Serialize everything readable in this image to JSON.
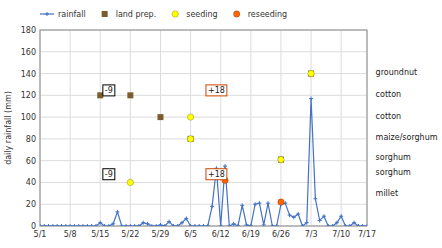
{
  "chart_data": {
    "type": "line",
    "ylabel": "daily rainfall (mm)",
    "xlim": [
      0,
      76
    ],
    "ylim": [
      0,
      180
    ],
    "yticks": [
      0,
      20,
      40,
      60,
      80,
      100,
      120,
      140,
      160,
      180
    ],
    "xticks": [
      {
        "value": 0,
        "label": "5/1"
      },
      {
        "value": 7,
        "label": "5/8"
      },
      {
        "value": 14,
        "label": "5/15"
      },
      {
        "value": 21,
        "label": "5/22"
      },
      {
        "value": 28,
        "label": "5/29"
      },
      {
        "value": 35,
        "label": "6/5"
      },
      {
        "value": 42,
        "label": "6/12"
      },
      {
        "value": 49,
        "label": "6/19"
      },
      {
        "value": 56,
        "label": "6/26"
      },
      {
        "value": 63,
        "label": "7/3"
      },
      {
        "value": 70,
        "label": "7/10"
      },
      {
        "value": 76,
        "label": "7/17"
      }
    ],
    "grid": true,
    "legend": "top",
    "series": [
      {
        "name": "rainfall",
        "type": "line",
        "color": "#4472c4",
        "marker": "plus",
        "x": [
          0,
          1,
          2,
          3,
          4,
          5,
          6,
          7,
          8,
          9,
          10,
          11,
          12,
          13,
          14,
          15,
          16,
          17,
          18,
          19,
          20,
          21,
          22,
          23,
          24,
          25,
          26,
          27,
          28,
          29,
          30,
          31,
          32,
          33,
          34,
          35,
          36,
          37,
          38,
          39,
          40,
          41,
          42,
          43,
          44,
          45,
          46,
          47,
          48,
          49,
          50,
          51,
          52,
          53,
          54,
          55,
          56,
          57,
          58,
          59,
          60,
          61,
          62,
          63,
          64,
          65,
          66,
          67,
          68,
          69,
          70,
          71,
          72,
          73,
          74,
          75,
          76
        ],
        "values": [
          0,
          0,
          0,
          0,
          0,
          0,
          0,
          0,
          0,
          0,
          0,
          0,
          0,
          0,
          3,
          0,
          0,
          2,
          13,
          0,
          0,
          0,
          0,
          0,
          3,
          2,
          0,
          0,
          1,
          0,
          4,
          0,
          0,
          3,
          7,
          0,
          0,
          0,
          0,
          0,
          18,
          53,
          0,
          55,
          0,
          2,
          0,
          19,
          1,
          0,
          20,
          21,
          1,
          21,
          0,
          0,
          20,
          21,
          10,
          8,
          11,
          0,
          3,
          117,
          25,
          5,
          9,
          0,
          0,
          3,
          9,
          0,
          0,
          3,
          0,
          0,
          0
        ]
      },
      {
        "name": "land prep.",
        "type": "scatter",
        "color": "#7b5c2e",
        "marker": "square",
        "x": [
          14,
          21,
          28,
          35,
          56,
          63
        ],
        "values": [
          120,
          120,
          100,
          80,
          61,
          140
        ]
      },
      {
        "name": "seeding",
        "type": "scatter",
        "color": "#ffff00",
        "marker": "circle",
        "x": [
          21,
          35,
          35,
          56,
          63
        ],
        "values": [
          40,
          100,
          80,
          61,
          140
        ]
      },
      {
        "name": "reseeding",
        "type": "scatter",
        "color": "#ff6600",
        "marker": "circle",
        "x": [
          43,
          56
        ],
        "values": [
          42,
          22
        ]
      }
    ],
    "annotations": [
      {
        "x": 16,
        "y": 48,
        "text": "-9",
        "color": "black"
      },
      {
        "x": 41,
        "y": 48,
        "text": "+18",
        "color": "#cc4400"
      },
      {
        "x": 16,
        "y": 125,
        "text": "-9",
        "color": "black"
      },
      {
        "x": 41,
        "y": 125,
        "text": "+18",
        "color": "#cc4400"
      },
      {
        "x": 78,
        "y": 141,
        "text": "groundnut"
      },
      {
        "x": 78,
        "y": 121,
        "text": "cotton"
      },
      {
        "x": 78,
        "y": 101,
        "text": "cotton"
      },
      {
        "x": 78,
        "y": 82,
        "text": "maize/sorghum"
      },
      {
        "x": 78,
        "y": 63,
        "text": "sorghum"
      },
      {
        "x": 78,
        "y": 50,
        "text": "sorghum"
      },
      {
        "x": 78,
        "y": 30,
        "text": "millet"
      }
    ]
  }
}
